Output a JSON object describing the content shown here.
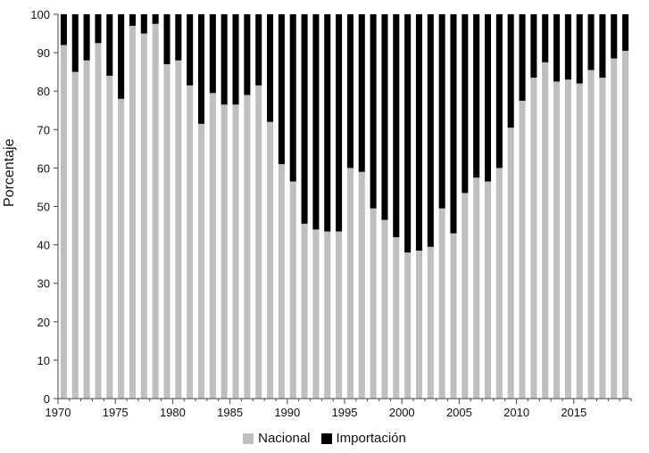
{
  "chart_data": {
    "type": "bar",
    "stacked": true,
    "title": "",
    "xlabel": "",
    "ylabel": "Porcentaje",
    "ylim": [
      0,
      100
    ],
    "yticks": [
      0,
      10,
      20,
      30,
      40,
      50,
      60,
      70,
      80,
      90,
      100
    ],
    "xtick_labels": [
      "1970",
      "1975",
      "1980",
      "1985",
      "1990",
      "1995",
      "2000",
      "2005",
      "2010",
      "2015"
    ],
    "grid": false,
    "legend_position": "bottom",
    "categories": [
      1970,
      1971,
      1972,
      1973,
      1974,
      1975,
      1976,
      1977,
      1978,
      1979,
      1980,
      1981,
      1982,
      1983,
      1984,
      1985,
      1986,
      1987,
      1988,
      1989,
      1990,
      1991,
      1992,
      1993,
      1994,
      1995,
      1996,
      1997,
      1998,
      1999,
      2000,
      2001,
      2002,
      2003,
      2004,
      2005,
      2006,
      2007,
      2008,
      2009,
      2010,
      2011,
      2012,
      2013,
      2014,
      2015,
      2016,
      2017,
      2018,
      2019
    ],
    "series": [
      {
        "name": "Nacional",
        "color": "#bfbfbf",
        "values": [
          92,
          85,
          88,
          92.5,
          84,
          78,
          97,
          95,
          97.5,
          87,
          88,
          81.5,
          71.5,
          79.5,
          76.5,
          76.5,
          79,
          81.5,
          72,
          61,
          56.5,
          45.5,
          44,
          43.5,
          43.5,
          60,
          59,
          49.5,
          46.5,
          42,
          38,
          38.5,
          39.5,
          49.5,
          43,
          53.5,
          57.5,
          56.5,
          60,
          70.5,
          77.5,
          83.5,
          87.5,
          82.5,
          83,
          82,
          85.5,
          83.5,
          88.5,
          90.5
        ]
      },
      {
        "name": "Importación",
        "color": "#000000",
        "values": [
          8,
          15,
          12,
          7.5,
          16,
          22,
          3,
          5,
          2.5,
          13,
          12,
          18.5,
          28.5,
          20.5,
          23.5,
          23.5,
          21,
          18.5,
          28,
          39,
          43.5,
          54.5,
          56,
          56.5,
          56.5,
          40,
          41,
          50.5,
          53.5,
          58,
          62,
          61.5,
          60.5,
          50.5,
          57,
          46.5,
          42.5,
          43.5,
          40,
          29.5,
          22.5,
          16.5,
          12.5,
          17.5,
          17,
          18,
          14.5,
          16.5,
          11.5,
          9.5
        ]
      }
    ]
  }
}
